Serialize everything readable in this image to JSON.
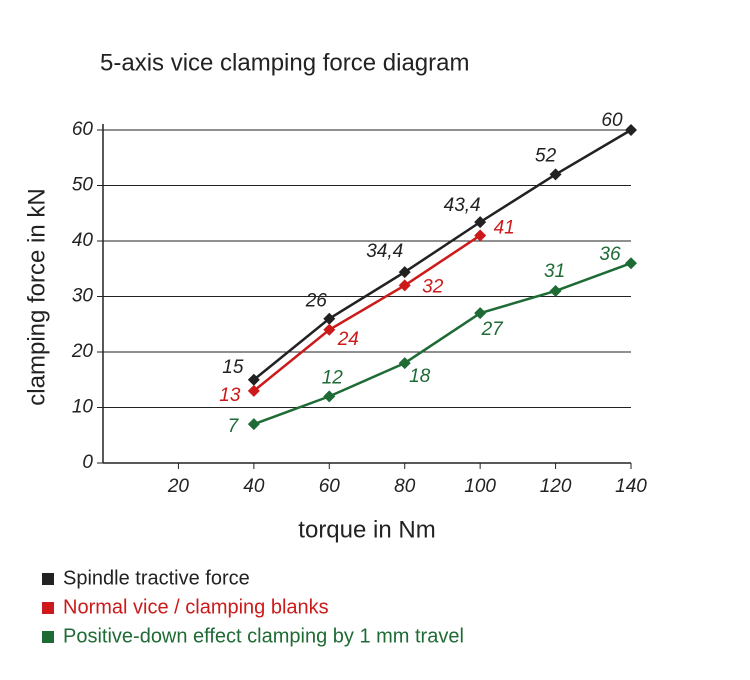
{
  "chart_data": {
    "type": "line",
    "title": "5-axis vice clamping force diagram",
    "x_label": "torque in Nm",
    "y_label": "clamping force in kN",
    "x": [
      40,
      60,
      80,
      100,
      120,
      140
    ],
    "series": [
      {
        "name": "Spindle tractive force",
        "color": "#222222",
        "values": [
          15,
          26,
          34.4,
          43.4,
          52,
          60
        ],
        "value_labels": [
          "15",
          "26",
          "34,4",
          "43,4",
          "52",
          "60"
        ]
      },
      {
        "name": "Normal vice / clamping blanks",
        "color": "#cc1a1a",
        "values": [
          13,
          24,
          32,
          41,
          null,
          null
        ]
      },
      {
        "name": "Positive-down effect clamping by 1 mm travel",
        "color": "#1e6b35",
        "values": [
          7,
          12,
          18,
          27,
          31,
          36
        ]
      }
    ],
    "xlim": [
      0,
      140
    ],
    "xticks": [
      20,
      40,
      60,
      80,
      100,
      120,
      140
    ],
    "ylim": [
      0,
      60
    ],
    "yticks": [
      0,
      10,
      20,
      30,
      40,
      50,
      60
    ],
    "grid": true
  }
}
